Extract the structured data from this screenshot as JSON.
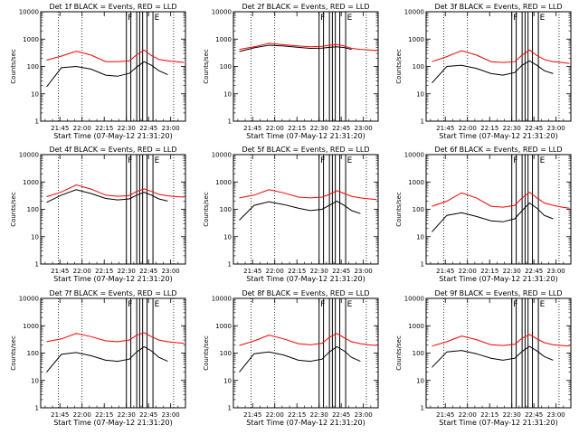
{
  "figure": {
    "xlabel": "Start Time (07-May-12 21:31:20)",
    "ylabel": "Counts/sec",
    "xticks": [
      "21:45",
      "22:00",
      "22:15",
      "22:30",
      "22:45",
      "23:00"
    ],
    "yticks": [
      "1",
      "10",
      "100",
      "1000",
      "10000"
    ],
    "colors": {
      "events": "#000000",
      "lld": "#ff0000",
      "axes": "#000000"
    }
  },
  "chart_data": [
    {
      "type": "line",
      "title": "Det 1f BLACK = Events, RED = LLD",
      "xlabel": "Start Time (07-May-12 21:31:20)",
      "ylabel": "Counts/sec",
      "y_scale": "log",
      "ylim": [
        1,
        10000
      ],
      "xlim": [
        "21:32",
        "23:10"
      ],
      "x": [
        "21:36",
        "21:46",
        "21:56",
        "22:06",
        "22:16",
        "22:24",
        "22:32",
        "22:37",
        "22:42",
        "22:47",
        "22:52",
        "22:58",
        "23:04",
        "23:09"
      ],
      "series": [
        {
          "name": "Events",
          "values": [
            18,
            90,
            100,
            80,
            48,
            44,
            56,
            95,
            150,
            110,
            70,
            50,
            null,
            null
          ]
        },
        {
          "name": "LLD",
          "values": [
            170,
            240,
            360,
            260,
            150,
            150,
            160,
            270,
            400,
            250,
            180,
            160,
            150,
            140
          ]
        }
      ],
      "vertical_lines": [
        "21:44",
        "22:00",
        "22:30",
        "22:33",
        "22:37",
        "22:39",
        "22:41",
        "22:44",
        "22:48",
        "23:02"
      ],
      "markers": [
        {
          "label": "F",
          "x": "22:30"
        },
        {
          "label": "E",
          "x": "22:48"
        }
      ]
    },
    {
      "type": "line",
      "title": "Det 2f BLACK = Events, RED = LLD",
      "xlabel": "Start Time (07-May-12 21:31:20)",
      "ylabel": "Counts/sec",
      "y_scale": "log",
      "ylim": [
        1,
        10000
      ],
      "xlim": [
        "21:32",
        "23:10"
      ],
      "x": [
        "21:36",
        "21:46",
        "21:56",
        "22:06",
        "22:16",
        "22:24",
        "22:32",
        "22:37",
        "22:42",
        "22:47",
        "22:52",
        "22:58",
        "23:04",
        "23:09"
      ],
      "series": [
        {
          "name": "Events",
          "values": [
            350,
            480,
            600,
            560,
            500,
            460,
            470,
            500,
            520,
            490,
            420,
            null,
            null,
            null
          ]
        },
        {
          "name": "LLD",
          "values": [
            420,
            520,
            700,
            620,
            560,
            520,
            540,
            600,
            640,
            560,
            460,
            420,
            400,
            380
          ]
        }
      ],
      "vertical_lines": [
        "21:44",
        "22:00",
        "22:30",
        "22:33",
        "22:37",
        "22:39",
        "22:41",
        "22:44",
        "22:48",
        "23:02"
      ],
      "markers": [
        {
          "label": "F",
          "x": "22:30"
        },
        {
          "label": "E",
          "x": "22:48"
        }
      ]
    },
    {
      "type": "line",
      "title": "Det 3f BLACK = Events, RED = LLD",
      "xlabel": "Start Time (07-May-12 21:31:20)",
      "ylabel": "Counts/sec",
      "y_scale": "log",
      "ylim": [
        1,
        10000
      ],
      "xlim": [
        "21:32",
        "23:10"
      ],
      "x": [
        "21:36",
        "21:46",
        "21:56",
        "22:06",
        "22:16",
        "22:24",
        "22:32",
        "22:37",
        "22:42",
        "22:47",
        "22:52",
        "22:58",
        "23:04",
        "23:09"
      ],
      "series": [
        {
          "name": "Events",
          "values": [
            25,
            100,
            110,
            85,
            55,
            48,
            60,
            110,
            160,
            110,
            70,
            55,
            null,
            null
          ]
        },
        {
          "name": "LLD",
          "values": [
            150,
            230,
            380,
            260,
            150,
            140,
            150,
            260,
            400,
            250,
            180,
            150,
            140,
            130
          ]
        }
      ],
      "vertical_lines": [
        "21:44",
        "22:00",
        "22:30",
        "22:33",
        "22:37",
        "22:39",
        "22:41",
        "22:44",
        "22:48",
        "23:02"
      ],
      "markers": [
        {
          "label": "F",
          "x": "22:30"
        },
        {
          "label": "E",
          "x": "22:48"
        }
      ]
    },
    {
      "type": "line",
      "title": "Det 4f BLACK = Events, RED = LLD",
      "xlabel": "Start Time (07-May-12 21:31:20)",
      "ylabel": "Counts/sec",
      "y_scale": "log",
      "ylim": [
        1,
        10000
      ],
      "xlim": [
        "21:32",
        "23:10"
      ],
      "x": [
        "21:36",
        "21:46",
        "21:56",
        "22:06",
        "22:16",
        "22:24",
        "22:32",
        "22:37",
        "22:42",
        "22:47",
        "22:52",
        "22:58",
        "23:04",
        "23:09"
      ],
      "series": [
        {
          "name": "Events",
          "values": [
            180,
            330,
            520,
            380,
            250,
            220,
            240,
            330,
            420,
            330,
            240,
            200,
            null,
            null
          ]
        },
        {
          "name": "LLD",
          "values": [
            290,
            430,
            780,
            550,
            330,
            300,
            320,
            450,
            560,
            450,
            350,
            310,
            290,
            280
          ]
        }
      ],
      "vertical_lines": [
        "21:44",
        "22:00",
        "22:30",
        "22:33",
        "22:37",
        "22:39",
        "22:41",
        "22:44",
        "22:48",
        "23:02"
      ],
      "markers": [
        {
          "label": "F",
          "x": "22:30"
        },
        {
          "label": "E",
          "x": "22:48"
        }
      ]
    },
    {
      "type": "line",
      "title": "Det 5f BLACK = Events, RED = LLD",
      "xlabel": "Start Time (07-May-12 21:31:20)",
      "ylabel": "Counts/sec",
      "y_scale": "log",
      "ylim": [
        1,
        10000
      ],
      "xlim": [
        "21:32",
        "23:10"
      ],
      "x": [
        "21:36",
        "21:46",
        "21:56",
        "22:06",
        "22:16",
        "22:24",
        "22:32",
        "22:37",
        "22:42",
        "22:47",
        "22:52",
        "22:58",
        "23:04",
        "23:09"
      ],
      "series": [
        {
          "name": "Events",
          "values": [
            40,
            140,
            190,
            150,
            110,
            90,
            100,
            140,
            200,
            140,
            90,
            70,
            null,
            null
          ]
        },
        {
          "name": "LLD",
          "values": [
            260,
            330,
            520,
            400,
            280,
            260,
            280,
            350,
            480,
            380,
            300,
            260,
            240,
            230
          ]
        }
      ],
      "vertical_lines": [
        "21:44",
        "22:00",
        "22:30",
        "22:33",
        "22:37",
        "22:39",
        "22:41",
        "22:44",
        "22:48",
        "23:02"
      ],
      "markers": [
        {
          "label": "F",
          "x": "22:30"
        },
        {
          "label": "E",
          "x": "22:48"
        }
      ]
    },
    {
      "type": "line",
      "title": "Det 6f BLACK = Events, RED = LLD",
      "xlabel": "Start Time (07-May-12 21:31:20)",
      "ylabel": "Counts/sec",
      "y_scale": "log",
      "ylim": [
        1,
        10000
      ],
      "xlim": [
        "21:32",
        "23:10"
      ],
      "x": [
        "21:36",
        "21:46",
        "21:56",
        "22:06",
        "22:16",
        "22:24",
        "22:32",
        "22:37",
        "22:42",
        "22:47",
        "22:52",
        "22:58",
        "23:04",
        "23:09"
      ],
      "series": [
        {
          "name": "Events",
          "values": [
            15,
            60,
            75,
            55,
            38,
            35,
            45,
            90,
            170,
            110,
            60,
            45,
            null,
            null
          ]
        },
        {
          "name": "LLD",
          "values": [
            130,
            200,
            400,
            260,
            130,
            120,
            140,
            260,
            420,
            260,
            170,
            140,
            120,
            110
          ]
        }
      ],
      "vertical_lines": [
        "21:44",
        "22:00",
        "22:30",
        "22:33",
        "22:37",
        "22:39",
        "22:41",
        "22:44",
        "22:48",
        "23:02"
      ],
      "markers": [
        {
          "label": "F",
          "x": "22:30"
        },
        {
          "label": "E",
          "x": "22:48"
        }
      ]
    },
    {
      "type": "line",
      "title": "Det 7f BLACK = Events, RED = LLD",
      "xlabel": "Start Time (07-May-12 21:31:20)",
      "ylabel": "Counts/sec",
      "y_scale": "log",
      "ylim": [
        1,
        10000
      ],
      "xlim": [
        "21:32",
        "23:10"
      ],
      "x": [
        "21:36",
        "21:46",
        "21:56",
        "22:06",
        "22:16",
        "22:24",
        "22:32",
        "22:37",
        "22:42",
        "22:47",
        "22:52",
        "22:58",
        "23:04",
        "23:09"
      ],
      "series": [
        {
          "name": "Events",
          "values": [
            20,
            90,
            105,
            80,
            55,
            50,
            60,
            110,
            170,
            120,
            70,
            50,
            null,
            null
          ]
        },
        {
          "name": "LLD",
          "values": [
            260,
            330,
            520,
            400,
            280,
            260,
            300,
            450,
            560,
            400,
            300,
            260,
            240,
            230
          ]
        }
      ],
      "vertical_lines": [
        "21:44",
        "22:00",
        "22:30",
        "22:33",
        "22:37",
        "22:39",
        "22:41",
        "22:44",
        "22:48",
        "23:02"
      ],
      "markers": [
        {
          "label": "F",
          "x": "22:30"
        },
        {
          "label": "E",
          "x": "22:48"
        }
      ]
    },
    {
      "type": "line",
      "title": "Det 8f BLACK = Events, RED = LLD",
      "xlabel": "Start Time (07-May-12 21:31:20)",
      "ylabel": "Counts/sec",
      "y_scale": "log",
      "ylim": [
        1,
        10000
      ],
      "xlim": [
        "21:32",
        "23:10"
      ],
      "x": [
        "21:36",
        "21:46",
        "21:56",
        "22:06",
        "22:16",
        "22:24",
        "22:32",
        "22:37",
        "22:42",
        "22:47",
        "22:52",
        "22:58",
        "23:04",
        "23:09"
      ],
      "series": [
        {
          "name": "Events",
          "values": [
            20,
            95,
            110,
            85,
            55,
            50,
            60,
            110,
            170,
            120,
            70,
            50,
            null,
            null
          ]
        },
        {
          "name": "LLD",
          "values": [
            190,
            280,
            450,
            330,
            220,
            200,
            230,
            380,
            520,
            360,
            260,
            220,
            200,
            190
          ]
        }
      ],
      "vertical_lines": [
        "21:44",
        "22:00",
        "22:30",
        "22:33",
        "22:37",
        "22:39",
        "22:41",
        "22:44",
        "22:48",
        "23:02"
      ],
      "markers": [
        {
          "label": "F",
          "x": "22:30"
        },
        {
          "label": "E",
          "x": "22:48"
        }
      ]
    },
    {
      "type": "line",
      "title": "Det 9f BLACK = Events, RED = LLD",
      "xlabel": "Start Time (07-May-12 21:31:20)",
      "ylabel": "Counts/sec",
      "y_scale": "log",
      "ylim": [
        1,
        10000
      ],
      "xlim": [
        "21:32",
        "23:10"
      ],
      "x": [
        "21:36",
        "21:46",
        "21:56",
        "22:06",
        "22:16",
        "22:24",
        "22:32",
        "22:37",
        "22:42",
        "22:47",
        "22:52",
        "22:58",
        "23:04",
        "23:09"
      ],
      "series": [
        {
          "name": "Events",
          "values": [
            30,
            110,
            125,
            95,
            65,
            55,
            65,
            115,
            175,
            120,
            75,
            55,
            null,
            null
          ]
        },
        {
          "name": "LLD",
          "values": [
            180,
            260,
            420,
            310,
            200,
            190,
            210,
            350,
            480,
            330,
            240,
            200,
            190,
            180
          ]
        }
      ],
      "vertical_lines": [
        "21:44",
        "22:00",
        "22:30",
        "22:33",
        "22:37",
        "22:39",
        "22:41",
        "22:44",
        "22:48",
        "23:02"
      ],
      "markers": [
        {
          "label": "F",
          "x": "22:30"
        },
        {
          "label": "E",
          "x": "22:48"
        }
      ]
    }
  ]
}
